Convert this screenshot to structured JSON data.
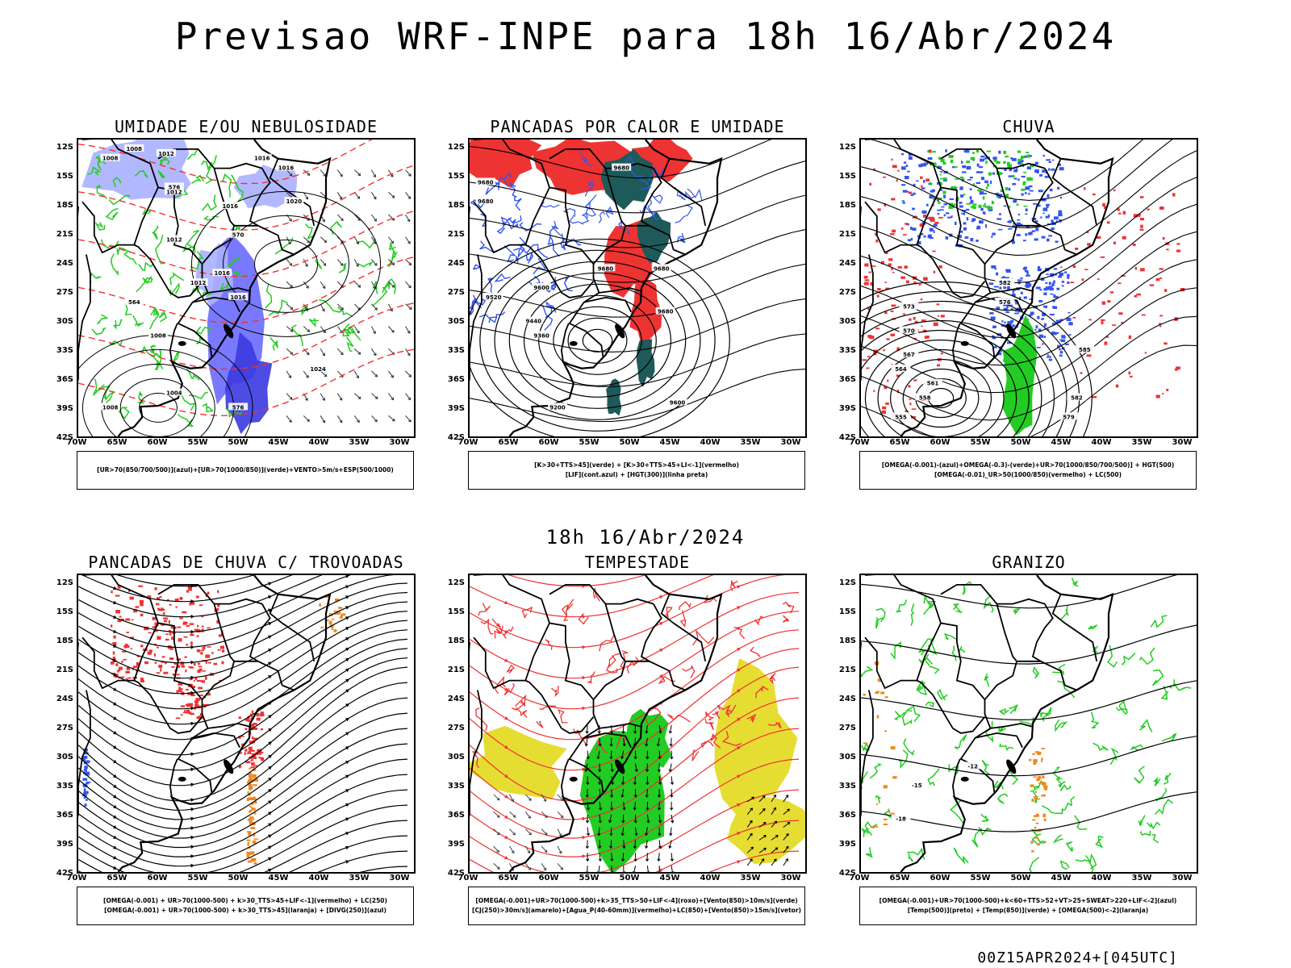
{
  "header": {
    "title": "Previsao WRF-INPE  para 18h 16/Abr/2024",
    "sub_date": "18h 16/Abr/2024",
    "run_label": "00Z15APR2024+[045UTC]"
  },
  "axes": {
    "lat_ticks": [
      "12S",
      "15S",
      "18S",
      "21S",
      "24S",
      "27S",
      "30S",
      "33S",
      "36S",
      "39S",
      "42S"
    ],
    "lon_ticks": [
      "70W",
      "65W",
      "60W",
      "55W",
      "50W",
      "45W",
      "40W",
      "35W",
      "30W"
    ]
  },
  "colors": {
    "blue": "#3355ee",
    "light_blue": "#aab0ff",
    "mid_blue": "#6a6aff",
    "green": "#22cc22",
    "red": "#ee3333",
    "dark_teal": "#1f5a5a",
    "orange": "#ee8822",
    "yellow": "#e6dd33",
    "black": "#000000"
  },
  "panels": [
    {
      "id": "umidade",
      "title": "UMIDADE E/OU NEBULOSIDADE",
      "legend": [
        "[UR>70(850/700/500)](azul)+[UR>70(1000/850)](verde)+VENTO>5m/s+ESP(500/1000)"
      ],
      "contour_labels": [
        "1008",
        "1008",
        "1012",
        "1016",
        "1016",
        "1012",
        "1020",
        "1016",
        "1012",
        "1016",
        "1008",
        "1016",
        "1012",
        "1004",
        "1024",
        "1008",
        "576",
        "570",
        "564",
        "576"
      ]
    },
    {
      "id": "pancadas_calor",
      "title": "PANCADAS POR CALOR E UMIDADE",
      "legend": [
        "[K>30+TTS>45](verde) + [K>30+TTS>45+LI<-1](vermelho)",
        "[LIF](cont.azul) + [HGT(300)](linha preta)"
      ],
      "contour_labels": [
        "9680",
        "9680",
        "9680",
        "9600",
        "9520",
        "9440",
        "9360",
        "9680",
        "9200",
        "9600",
        "9680",
        "9680"
      ]
    },
    {
      "id": "chuva",
      "title": "CHUVA",
      "legend": [
        "[OMEGA(-0.001)-(azul)+OMEGA(-0.3)-(verde)+UR>70(1000/850/700/500)] + HGT(500)",
        "[OMEGA(-0.01)_UR>50(1000/850)(vermelho) + LC(500)"
      ],
      "contour_labels": [
        "582",
        "576",
        "573",
        "570",
        "567",
        "564",
        "561",
        "558",
        "555",
        "585",
        "582",
        "579"
      ]
    },
    {
      "id": "pancadas_trovoadas",
      "title": "PANCADAS DE CHUVA C/ TROVOADAS",
      "legend": [
        "[OMEGA(-0.001) + UR>70(1000-500) + k>30_TTS>45+LIF<-1](vermelho) + LC(250)",
        "[OMEGA(-0.001) + UR>70(1000-500) + k>30_TTS>45](laranja) + [DIVG(250)](azul)"
      ],
      "contour_labels": []
    },
    {
      "id": "tempestade",
      "title": "TEMPESTADE",
      "legend": [
        "[OMEGA(-0.001)+UR>70(1000-500)+k>35_TTS>50+LIF<-4](roxo)+[Vento(850)>10m/s](verde)",
        "[CJ(250)>30m/s](amarelo)+[Agua_P(40-60mm)](vermelho)+LC(850)+[Vento(850)>15m/s](vetor)"
      ],
      "contour_labels": []
    },
    {
      "id": "granizo",
      "title": "GRANIZO",
      "legend": [
        "[OMEGA(-0.001)+UR>70(1000-500)+k<60+TTS>52+VT>25+SWEAT>220+LIF<-2](azul)",
        "[Temp(500)](preto) + [Temp(850)](verde) + [OMEGA(500)<-2](laranja)"
      ],
      "contour_labels": [
        "-12",
        "-15",
        "-18"
      ]
    }
  ]
}
